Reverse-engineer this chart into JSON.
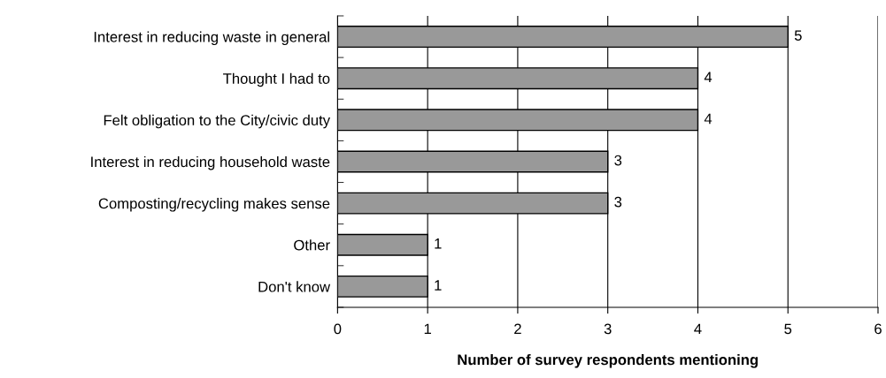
{
  "chart_data": {
    "type": "bar",
    "orientation": "horizontal",
    "xlabel": "Number of survey respondents mentioning",
    "categories": [
      "Interest in reducing waste in general",
      "Thought I had to",
      "Felt obligation to the City/civic duty",
      "Interest in reducing household waste",
      "Composting/recycling makes sense",
      "Other",
      "Don't know"
    ],
    "values": [
      5,
      4,
      4,
      3,
      3,
      1,
      1
    ],
    "color": "#999999",
    "xlim": [
      0,
      6
    ],
    "xticks": [
      0,
      1,
      2,
      3,
      4,
      5,
      6
    ],
    "grid": "x",
    "data_labels": true,
    "legend": false
  }
}
